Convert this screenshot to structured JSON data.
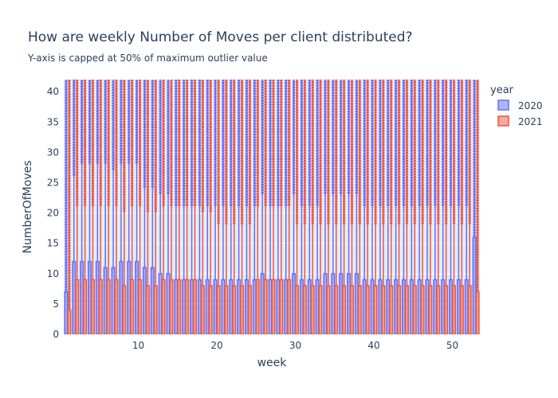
{
  "chart_data": {
    "type": "box",
    "title": "How are weekly Number of Moves per client distributed?",
    "subtitle": "Y-axis is capped at 50% of maximum outlier value",
    "xlabel": "week",
    "ylabel": "NumberOfMoves",
    "xlim": [
      0.5,
      53.5
    ],
    "ylim": [
      0,
      42
    ],
    "xticks": [
      10,
      20,
      30,
      40,
      50
    ],
    "yticks": [
      0,
      5,
      10,
      15,
      20,
      25,
      30,
      35,
      40
    ],
    "grid": true,
    "legend": {
      "title": "year",
      "placement": "top-right"
    },
    "series": [
      {
        "name": "2020",
        "color": "#636efa",
        "weeks": [
          1,
          2,
          3,
          4,
          5,
          6,
          7,
          8,
          9,
          10,
          11,
          12,
          13,
          14,
          15,
          16,
          17,
          18,
          19,
          20,
          21,
          22,
          23,
          24,
          25,
          26,
          27,
          28,
          29,
          30,
          31,
          32,
          33,
          34,
          35,
          36,
          37,
          38,
          39,
          40,
          41,
          42,
          43,
          44,
          45,
          46,
          47,
          48,
          49,
          50,
          51,
          52,
          53
        ],
        "q3": [
          7,
          12,
          12,
          12,
          12,
          11,
          11,
          12,
          12,
          12,
          11,
          11,
          10,
          10,
          9,
          9,
          9,
          9,
          9,
          9,
          9,
          9,
          9,
          9,
          9,
          10,
          9,
          9,
          9,
          10,
          9,
          9,
          9,
          10,
          10,
          10,
          10,
          10,
          9,
          9,
          9,
          9,
          9,
          9,
          9,
          9,
          9,
          9,
          9,
          9,
          9,
          9,
          16
        ],
        "upper_fence": [
          7,
          26,
          28,
          28,
          28,
          28,
          27,
          28,
          28,
          28,
          24,
          24,
          23,
          23,
          21,
          21,
          21,
          21,
          21,
          21,
          21,
          21,
          21,
          21,
          21,
          23,
          21,
          21,
          21,
          23,
          21,
          21,
          21,
          23,
          23,
          23,
          23,
          23,
          21,
          21,
          21,
          21,
          21,
          21,
          21,
          21,
          21,
          21,
          21,
          21,
          21,
          21,
          16
        ]
      },
      {
        "name": "2021",
        "color": "#ef553b",
        "weeks": [
          1,
          2,
          3,
          4,
          5,
          6,
          7,
          8,
          9,
          10,
          11,
          12,
          13,
          14,
          15,
          16,
          17,
          18,
          19,
          20,
          21,
          22,
          23,
          24,
          25,
          26,
          27,
          28,
          29,
          30,
          31,
          32,
          33,
          34,
          35,
          36,
          37,
          38,
          39,
          40,
          41,
          42,
          43,
          44,
          45,
          46,
          47,
          48,
          49,
          50,
          51,
          52,
          53
        ],
        "q3": [
          4,
          9,
          9,
          9,
          9,
          9,
          9,
          8,
          9,
          9,
          8,
          8,
          9,
          9,
          9,
          9,
          9,
          8,
          8,
          8,
          8,
          8,
          8,
          8,
          9,
          9,
          9,
          9,
          9,
          8,
          8,
          8,
          8,
          8,
          8,
          8,
          8,
          8,
          8,
          8,
          8,
          8,
          8,
          8,
          8,
          8,
          8,
          8,
          8,
          8,
          8,
          8,
          7
        ],
        "upper_fence": [
          4,
          21,
          21,
          21,
          21,
          21,
          21,
          20,
          21,
          21,
          20,
          20,
          21,
          21,
          21,
          21,
          21,
          20,
          20,
          18,
          18,
          18,
          18,
          18,
          21,
          21,
          21,
          21,
          21,
          18,
          18,
          18,
          18,
          18,
          18,
          18,
          18,
          18,
          18,
          18,
          18,
          18,
          18,
          18,
          18,
          18,
          18,
          18,
          18,
          18,
          18,
          18,
          7
        ]
      }
    ]
  }
}
